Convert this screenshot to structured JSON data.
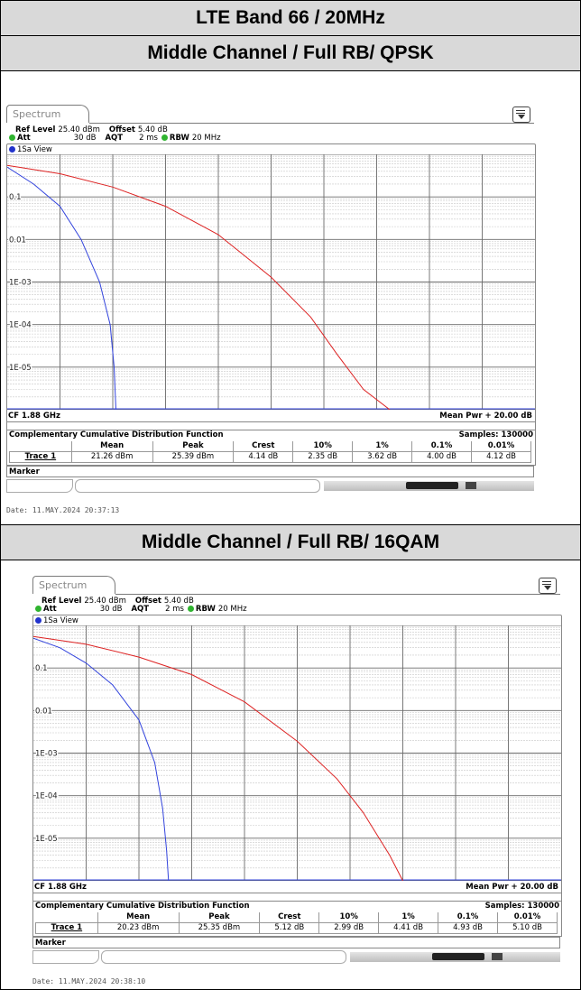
{
  "header": {
    "title": "LTE Band 66 / 20MHz",
    "section1": "Middle Channel / Full RB/ QPSK",
    "section2": "Middle Channel / Full RB/ 16QAM"
  },
  "colors": {
    "trace_blue": "#3344dd",
    "trace_red": "#dd2222",
    "header_bg": "#d9d9d9",
    "status_green": "#2fb42f"
  },
  "icons": [
    "menu-icon",
    "status-dot-icon"
  ],
  "panels": [
    {
      "tab": "Spectrum",
      "ref_level_label": "Ref Level",
      "ref_level": "25.40 dBm",
      "offset_label": "Offset",
      "offset": "5.40 dB",
      "att_label": "Att",
      "att": "30 dB",
      "aqt_label": "AQT",
      "aqt": "2 ms",
      "rbw_label": "RBW",
      "rbw": "20 MHz",
      "view": "1Sa View",
      "yticks": [
        "0.1",
        "0.01",
        "1E-03",
        "1E-04",
        "1E-05"
      ],
      "cf": "CF 1.88 GHz",
      "mean_pwr": "Mean Pwr + 20.00 dB",
      "ccdf_title": "Complementary Cumulative Distribution Function",
      "samples": "Samples: 130000",
      "table": {
        "headers": [
          "",
          "Mean",
          "Peak",
          "Crest",
          "10%",
          "1%",
          "0.1%",
          "0.01%"
        ],
        "row": [
          "Trace 1",
          "21.26 dBm",
          "25.39 dBm",
          "4.14 dB",
          "2.35 dB",
          "3.62 dB",
          "4.00 dB",
          "4.12 dB"
        ]
      },
      "marker": "Marker",
      "date": "Date: 11.MAY.2024  20:37:13"
    },
    {
      "tab": "Spectrum",
      "ref_level_label": "Ref Level",
      "ref_level": "25.40 dBm",
      "offset_label": "Offset",
      "offset": "5.40 dB",
      "att_label": "Att",
      "att": "30 dB",
      "aqt_label": "AQT",
      "aqt": "2 ms",
      "rbw_label": "RBW",
      "rbw": "20 MHz",
      "view": "1Sa View",
      "yticks": [
        "0.1",
        "0.01",
        "1E-03",
        "1E-04",
        "1E-05"
      ],
      "cf": "CF 1.88 GHz",
      "mean_pwr": "Mean Pwr + 20.00 dB",
      "ccdf_title": "Complementary Cumulative Distribution Function",
      "samples": "Samples: 130000",
      "table": {
        "headers": [
          "",
          "Mean",
          "Peak",
          "Crest",
          "10%",
          "1%",
          "0.1%",
          "0.01%"
        ],
        "row": [
          "Trace 1",
          "20.23 dBm",
          "25.35 dBm",
          "5.12 dB",
          "2.99 dB",
          "4.41 dB",
          "4.93 dB",
          "5.10 dB"
        ]
      },
      "marker": "Marker",
      "date": "Date: 11.MAY.2024  20:38:10"
    }
  ],
  "chart_data": [
    {
      "type": "line",
      "title": "",
      "xlabel": "",
      "ylabel": "",
      "xlim": [
        0,
        20
      ],
      "ylim": [
        1e-06,
        1
      ],
      "y_scale": "log",
      "grid": true,
      "series": [
        {
          "x": [
            0,
            1,
            2,
            2.8,
            3.5,
            3.9,
            4.05,
            4.12
          ],
          "y": [
            0.5,
            0.2,
            0.06,
            0.01,
            0.001,
            0.0001,
            1e-05,
            1e-06
          ]
        },
        {
          "x": [
            0,
            2,
            4,
            6,
            8,
            10,
            11.5,
            12.5,
            13.5,
            14.5
          ],
          "y": [
            0.55,
            0.35,
            0.17,
            0.06,
            0.013,
            0.0013,
            0.00015,
            2e-05,
            3e-06,
            1e-06
          ]
        }
      ]
    },
    {
      "type": "line",
      "title": "",
      "xlabel": "",
      "ylabel": "",
      "xlim": [
        0,
        20
      ],
      "ylim": [
        1e-06,
        1
      ],
      "y_scale": "log",
      "grid": true,
      "series": [
        {
          "x": [
            0,
            1,
            2,
            3,
            4,
            4.6,
            4.9,
            5.05,
            5.12
          ],
          "y": [
            0.5,
            0.3,
            0.13,
            0.04,
            0.006,
            0.0006,
            5e-05,
            5e-06,
            1e-06
          ]
        },
        {
          "x": [
            0,
            2,
            4,
            6,
            8,
            10,
            11.5,
            12.5,
            13.5,
            14.0
          ],
          "y": [
            0.55,
            0.36,
            0.18,
            0.07,
            0.016,
            0.0019,
            0.00025,
            4e-05,
            4e-06,
            1e-06
          ]
        }
      ]
    }
  ]
}
